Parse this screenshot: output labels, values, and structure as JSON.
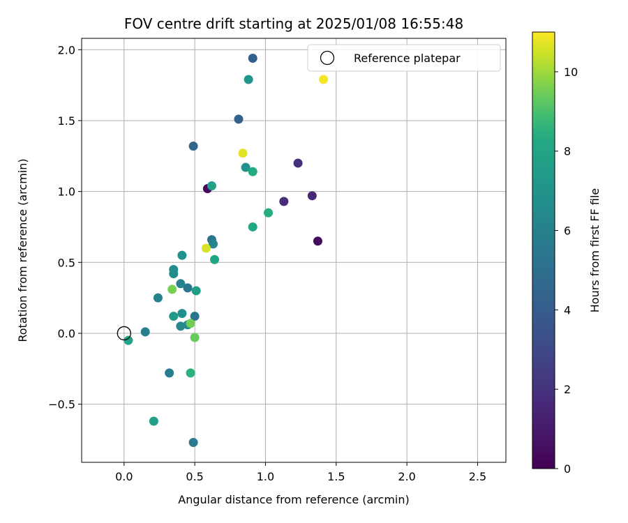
{
  "chart_data": {
    "type": "scatter",
    "title": "FOV centre drift starting at 2025/01/08 16:55:48",
    "xlabel": "Angular distance from reference (arcmin)",
    "ylabel": "Rotation from reference (arcmin)",
    "xlim": [
      -0.3,
      2.7
    ],
    "ylim": [
      -0.91,
      2.08
    ],
    "xticks": [
      0.0,
      0.5,
      1.0,
      1.5,
      2.0,
      2.5
    ],
    "xtick_labels": [
      "0.0",
      "0.5",
      "1.0",
      "1.5",
      "2.0",
      "2.5"
    ],
    "yticks": [
      -0.5,
      0.0,
      0.5,
      1.0,
      1.5,
      2.0
    ],
    "ytick_labels": [
      "−0.5",
      "0.0",
      "0.5",
      "1.0",
      "1.5",
      "2.0"
    ],
    "grid": true,
    "legend": {
      "position": "top-right",
      "entries": [
        {
          "label": "Reference platepar",
          "marker": "open-circle"
        }
      ]
    },
    "reference_point": {
      "x": 0.0,
      "y": 0.0
    },
    "colorbar": {
      "label": "Hours from first FF file",
      "colormap": "viridis",
      "range": [
        0,
        11
      ],
      "ticks": [
        0,
        2,
        4,
        6,
        8,
        10
      ],
      "tick_labels": [
        "0",
        "2",
        "4",
        "6",
        "8",
        "10"
      ]
    },
    "points": [
      {
        "x": 0.59,
        "y": 1.02,
        "c": 0.3
      },
      {
        "x": 1.37,
        "y": 0.65,
        "c": 0.4
      },
      {
        "x": 1.33,
        "y": 0.97,
        "c": 1.6
      },
      {
        "x": 1.13,
        "y": 0.93,
        "c": 1.7
      },
      {
        "x": 1.23,
        "y": 1.2,
        "c": 1.9
      },
      {
        "x": 0.91,
        "y": 1.94,
        "c": 4.2
      },
      {
        "x": 0.81,
        "y": 1.51,
        "c": 4.2
      },
      {
        "x": 0.49,
        "y": 1.32,
        "c": 4.5
      },
      {
        "x": 0.62,
        "y": 0.66,
        "c": 5.2
      },
      {
        "x": 0.5,
        "y": 0.12,
        "c": 5.2
      },
      {
        "x": 0.45,
        "y": 0.32,
        "c": 5.4
      },
      {
        "x": 0.49,
        "y": -0.77,
        "c": 5.6
      },
      {
        "x": 0.32,
        "y": -0.28,
        "c": 5.8
      },
      {
        "x": 0.15,
        "y": 0.01,
        "c": 5.9
      },
      {
        "x": 0.24,
        "y": 0.25,
        "c": 6.0
      },
      {
        "x": 0.4,
        "y": 0.35,
        "c": 6.1
      },
      {
        "x": 0.63,
        "y": 0.63,
        "c": 6.3
      },
      {
        "x": 0.4,
        "y": 0.05,
        "c": 6.4
      },
      {
        "x": 0.45,
        "y": 0.06,
        "c": 6.5
      },
      {
        "x": 0.35,
        "y": 0.42,
        "c": 6.6
      },
      {
        "x": 0.35,
        "y": 0.45,
        "c": 6.7
      },
      {
        "x": 0.41,
        "y": 0.14,
        "c": 6.8
      },
      {
        "x": 0.41,
        "y": 0.55,
        "c": 6.9
      },
      {
        "x": 0.86,
        "y": 1.17,
        "c": 7.0
      },
      {
        "x": 0.88,
        "y": 1.79,
        "c": 7.2
      },
      {
        "x": 0.35,
        "y": 0.12,
        "c": 7.5
      },
      {
        "x": 0.51,
        "y": 0.3,
        "c": 7.6
      },
      {
        "x": 0.62,
        "y": 1.04,
        "c": 7.7
      },
      {
        "x": 0.21,
        "y": -0.62,
        "c": 7.8
      },
      {
        "x": 0.03,
        "y": -0.05,
        "c": 7.9
      },
      {
        "x": 0.64,
        "y": 0.52,
        "c": 8.1
      },
      {
        "x": 0.91,
        "y": 0.75,
        "c": 8.2
      },
      {
        "x": 0.91,
        "y": 1.14,
        "c": 8.3
      },
      {
        "x": 1.02,
        "y": 0.85,
        "c": 8.4
      },
      {
        "x": 0.47,
        "y": -0.28,
        "c": 8.5
      },
      {
        "x": 0.5,
        "y": -0.03,
        "c": 9.4
      },
      {
        "x": 0.47,
        "y": 0.07,
        "c": 9.5
      },
      {
        "x": 0.34,
        "y": 0.31,
        "c": 9.6
      },
      {
        "x": 0.58,
        "y": 0.6,
        "c": 10.6
      },
      {
        "x": 0.84,
        "y": 1.27,
        "c": 10.7
      },
      {
        "x": 1.41,
        "y": 1.79,
        "c": 10.9
      }
    ]
  }
}
